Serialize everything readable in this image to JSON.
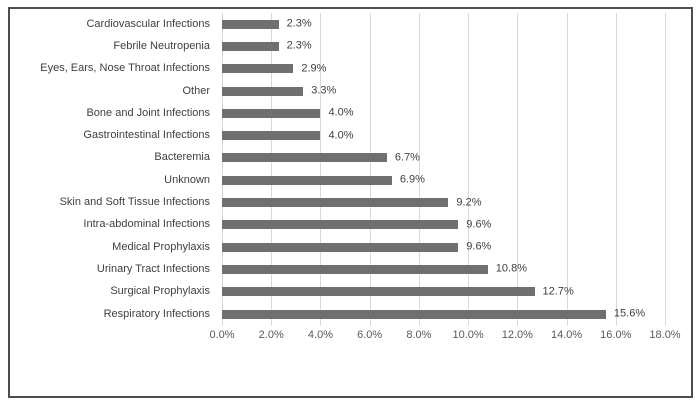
{
  "chart_data": {
    "type": "bar",
    "orientation": "horizontal",
    "title": "",
    "xlabel": "",
    "ylabel": "",
    "categories": [
      "Cardiovascular Infections",
      "Febrile Neutropenia",
      "Eyes, Ears, Nose Throat Infections",
      "Other",
      "Bone and Joint Infections",
      "Gastrointestinal Infections",
      "Bacteremia",
      "Unknown",
      "Skin and Soft Tissue Infections",
      "Intra-abdominal Infections",
      "Medical Prophylaxis",
      "Urinary Tract Infections",
      "Surgical Prophylaxis",
      "Respiratory Infections"
    ],
    "values": [
      2.3,
      2.3,
      2.9,
      3.3,
      4.0,
      4.0,
      6.7,
      6.9,
      9.2,
      9.6,
      9.6,
      10.8,
      12.7,
      15.6
    ],
    "value_labels": [
      "2.3%",
      "2.3%",
      "2.9%",
      "3.3%",
      "4.0%",
      "4.0%",
      "6.7%",
      "6.9%",
      "9.2%",
      "9.6%",
      "9.6%",
      "10.8%",
      "12.7%",
      "15.6%"
    ],
    "xlim": [
      0,
      18
    ],
    "xtick_values": [
      0,
      2,
      4,
      6,
      8,
      10,
      12,
      14,
      16,
      18
    ],
    "xtick_labels": [
      "0.0%",
      "2.0%",
      "4.0%",
      "6.0%",
      "8.0%",
      "10.0%",
      "12.0%",
      "14.0%",
      "16.0%",
      "18.0%"
    ],
    "grid": true,
    "legend": false,
    "colors": {
      "bar": "#6f6f6f",
      "gridline": "#d9d9d9",
      "tick_label": "#595959",
      "category_label": "#3f3f3f",
      "value_label": "#3f3f3f",
      "frame_border": "#4d4d4d",
      "background": "#ffffff"
    }
  }
}
